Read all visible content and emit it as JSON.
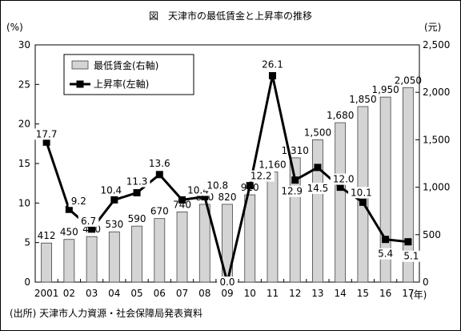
{
  "chart_data": {
    "type": "bar+line",
    "title": "図　天津市の最低賃金と上昇率の推移",
    "left_unit": "(%)",
    "right_unit": "(元)",
    "x_unit": "(年)",
    "categories": [
      "2001",
      "02",
      "03",
      "04",
      "05",
      "06",
      "07",
      "08",
      "09",
      "10",
      "11",
      "12",
      "13",
      "14",
      "15",
      "16",
      "17"
    ],
    "bar_series": {
      "name": "最低賃金(右軸)",
      "axis": "right",
      "values": [
        412,
        450,
        480,
        530,
        590,
        670,
        740,
        820,
        820,
        920,
        1160,
        1310,
        1500,
        1680,
        1850,
        1950,
        2050
      ],
      "labels": [
        "412",
        "450",
        "480",
        "530",
        "590",
        "670",
        "740",
        "820",
        "820",
        "920",
        "1,160",
        "1,310",
        "1,500",
        "1,680",
        "1,850",
        "1,950",
        "2,050"
      ],
      "color": "#d4d4d4"
    },
    "line_series": {
      "name": "上昇率(左軸)",
      "axis": "left",
      "values": [
        17.7,
        9.2,
        6.7,
        10.4,
        11.3,
        13.6,
        10.4,
        10.8,
        0.0,
        12.2,
        26.1,
        12.9,
        14.5,
        12.0,
        10.1,
        5.4,
        5.1
      ],
      "labels": [
        "17.7",
        "9.2",
        "6.7",
        "10.4",
        "11.3",
        "13.6",
        "10.4",
        "10.8",
        "0.0",
        "12.2",
        "26.1",
        "12.9",
        "14.5",
        "12.0",
        "10.1",
        "5.4",
        "5.1"
      ],
      "color": "#000000"
    },
    "left_axis": {
      "ylim": [
        0,
        30
      ],
      "ticks": [
        "0",
        "5",
        "10",
        "15",
        "20",
        "25",
        "30"
      ]
    },
    "right_axis": {
      "ylim": [
        0,
        2500
      ],
      "ticks": [
        "0",
        "500",
        "1,000",
        "1,500",
        "2,000",
        "2,500"
      ]
    },
    "legend": {
      "placement": "top-left",
      "entries": [
        "最低賃金(右軸)",
        "上昇率(左軸)"
      ]
    },
    "grid": false
  },
  "source": "(出所) 天津市人力資源・社会保障局発表資料"
}
